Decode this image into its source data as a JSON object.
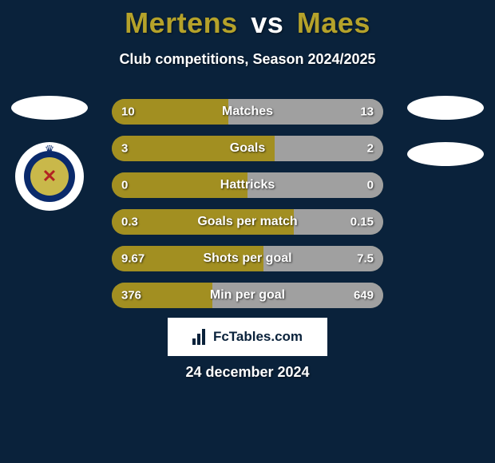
{
  "colors": {
    "background": "#0a223b",
    "title_player": "#b5a22a",
    "title_vs": "#ffffff",
    "subtitle": "#ffffff",
    "bar_track": "#5f6a4a",
    "bar_left": "#a28f21",
    "bar_right": "#a0a0a0",
    "text_on_bar": "#ffffff",
    "fctables_bg": "#ffffff",
    "fctables_text": "#0a223b",
    "date_text": "#ffffff",
    "crest_outer": "#0a2a6b",
    "crest_inner": "#c9b84a",
    "crest_cross": "#b22222",
    "crest_crown": "#0a2a6b"
  },
  "title": {
    "player1": "Mertens",
    "vs": "vs",
    "player2": "Maes"
  },
  "subtitle": "Club competitions, Season 2024/2025",
  "bars": [
    {
      "label": "Matches",
      "left_val": "10",
      "right_val": "13",
      "left_pct": 43,
      "right_pct": 57
    },
    {
      "label": "Goals",
      "left_val": "3",
      "right_val": "2",
      "left_pct": 60,
      "right_pct": 40
    },
    {
      "label": "Hattricks",
      "left_val": "0",
      "right_val": "0",
      "left_pct": 50,
      "right_pct": 50
    },
    {
      "label": "Goals per match",
      "left_val": "0.3",
      "right_val": "0.15",
      "left_pct": 67,
      "right_pct": 33
    },
    {
      "label": "Shots per goal",
      "left_val": "9.67",
      "right_val": "7.5",
      "left_pct": 56,
      "right_pct": 44
    },
    {
      "label": "Min per goal",
      "left_val": "376",
      "right_val": "649",
      "left_pct": 37,
      "right_pct": 63
    }
  ],
  "fctables": "FcTables.com",
  "date": "24 december 2024"
}
